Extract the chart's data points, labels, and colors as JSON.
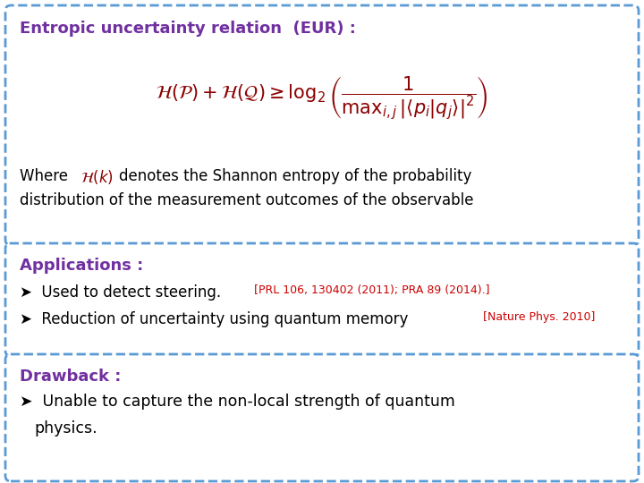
{
  "bg_color": "#ffffff",
  "box1": {
    "title": "Entropic uncertainty relation  (EUR) :",
    "title_color": "#7030a0",
    "formula_color": "#8b0000",
    "where_color": "#000000",
    "hk_color": "#8b0000",
    "border_color": "#5b9bd5"
  },
  "box2": {
    "title": "Applications :",
    "title_color": "#7030a0",
    "text_color": "#000000",
    "ref_color": "#cc0000",
    "border_color": "#5b9bd5"
  },
  "box3": {
    "title": "Drawback :",
    "title_color": "#7030a0",
    "text_color": "#000000",
    "border_color": "#5b9bd5"
  }
}
